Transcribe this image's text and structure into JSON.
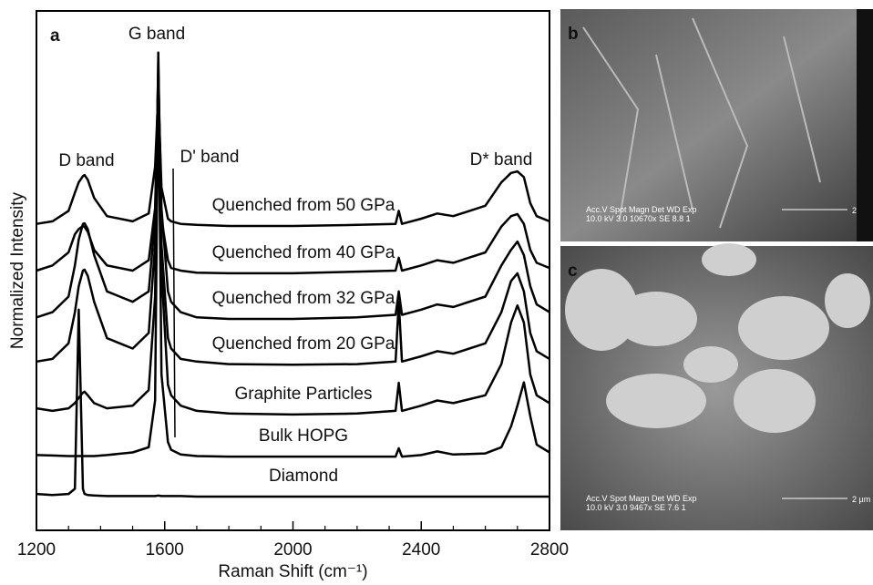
{
  "chart_data": {
    "type": "line",
    "xlabel": "Raman Shift (cm⁻¹)",
    "ylabel": "Normalized Intensity",
    "panel_label": "a",
    "annotations": [
      "D band",
      "G band",
      "D' band",
      "D* band"
    ],
    "xlim": [
      1200,
      2800
    ],
    "ylim": [
      0,
      100
    ],
    "xticks": [
      1200,
      1600,
      2000,
      2400,
      2800
    ],
    "xminorticks": [
      1300,
      1400,
      1500,
      1700,
      1800,
      1900,
      2100,
      2200,
      2300,
      2500,
      2600,
      2700
    ],
    "color": "#000000",
    "x": [
      1200,
      1250,
      1300,
      1320,
      1332,
      1345,
      1350,
      1360,
      1380,
      1420,
      1500,
      1550,
      1570,
      1580,
      1590,
      1610,
      1620,
      1650,
      1700,
      1800,
      2000,
      2200,
      2320,
      2330,
      2340,
      2400,
      2450,
      2500,
      2600,
      2650,
      2680,
      2700,
      2720,
      2740,
      2760,
      2800
    ],
    "series": [
      {
        "name": "Quenched from 50 GPa",
        "values": [
          59,
          59.5,
          61.5,
          65,
          67,
          68.2,
          68.4,
          67.5,
          64,
          60.5,
          59.5,
          61,
          70,
          84,
          66,
          60,
          59.5,
          59,
          58.8,
          58.6,
          58.6,
          58.8,
          59,
          61.5,
          59,
          60,
          61,
          60.5,
          62.5,
          67,
          68.8,
          69.1,
          68,
          63,
          60.5,
          59.5
        ]
      },
      {
        "name": "Quenched from 40 GPa",
        "values": [
          50,
          51,
          53.5,
          57,
          58,
          58.6,
          58.4,
          57.5,
          54,
          51,
          50,
          52,
          62,
          86,
          60,
          52,
          50.5,
          50,
          49.6,
          49.5,
          49.5,
          49.8,
          50,
          52.5,
          50,
          51,
          52,
          51.5,
          53.5,
          58.5,
          60.5,
          60.9,
          59,
          54,
          51.5,
          50.5
        ]
      },
      {
        "name": "Quenched from 32 GPa",
        "values": [
          41,
          42,
          45,
          51,
          56,
          59,
          59.1,
          58,
          53,
          46,
          44,
          46,
          60,
          88,
          62,
          46,
          44,
          42,
          41,
          40.7,
          40.7,
          41,
          41.5,
          46,
          41.5,
          42.5,
          43.5,
          43,
          45,
          51,
          54,
          55.6,
          53,
          47,
          43.5,
          42
        ]
      },
      {
        "name": "Quenched from 20 GPa",
        "values": [
          32.5,
          33,
          36,
          42,
          47,
          50,
          50.2,
          49,
          44,
          37,
          35,
          38,
          55,
          90,
          55,
          37,
          35,
          33,
          32.5,
          32,
          31.9,
          32,
          32.5,
          44,
          32.5,
          33.5,
          34.5,
          34,
          36,
          42,
          48,
          49.5,
          46,
          38,
          34.5,
          33
        ]
      },
      {
        "name": "Graphite Particles",
        "values": [
          23.5,
          23,
          23.5,
          24.5,
          25.5,
          26.5,
          26.7,
          26,
          24.5,
          23.5,
          24,
          27,
          45,
          92,
          50,
          28,
          26,
          24,
          23,
          22.5,
          22.3,
          22.5,
          23,
          28.4,
          23,
          24,
          25,
          24.5,
          26,
          32,
          40,
          43.3,
          40,
          30,
          26,
          24.5
        ]
      },
      {
        "name": "Bulk HOPG",
        "values": [
          14.5,
          14.4,
          14.3,
          14.3,
          14.3,
          14.3,
          14.3,
          14.3,
          14.3,
          14.5,
          15,
          16,
          25,
          88,
          30,
          17,
          15.5,
          14.6,
          14.3,
          14.2,
          14.2,
          14.2,
          14.2,
          15.8,
          14.2,
          14.5,
          15.2,
          14.6,
          14.8,
          16,
          20,
          24,
          28.5,
          22,
          16.5,
          15
        ]
      },
      {
        "name": "Diamond",
        "values": [
          7,
          6.8,
          7,
          8,
          42.5,
          8,
          7,
          6.8,
          6.7,
          6.6,
          6.6,
          6.6,
          6.6,
          6.7,
          6.6,
          6.6,
          6.6,
          6.6,
          6.5,
          6.5,
          6.5,
          6.5,
          6.5,
          6.5,
          6.5,
          6.5,
          6.5,
          6.5,
          6.5,
          6.5,
          6.5,
          6.5,
          6.5,
          6.5,
          6.5,
          6.5
        ]
      }
    ]
  },
  "panels": [
    {
      "label": "b",
      "info_header": "Acc.V  Spot Magn    Det  WD  Exp",
      "info_values": "10.0 kV 3.0  10670x   SE   8.8    1",
      "scale": "2"
    },
    {
      "label": "c",
      "info_header": "Acc.V  Spot Magn    Det  WD  Exp",
      "info_values": "10.0 kV 3.0  9467x    SE   7.6    1",
      "scale": "2 µm"
    }
  ]
}
